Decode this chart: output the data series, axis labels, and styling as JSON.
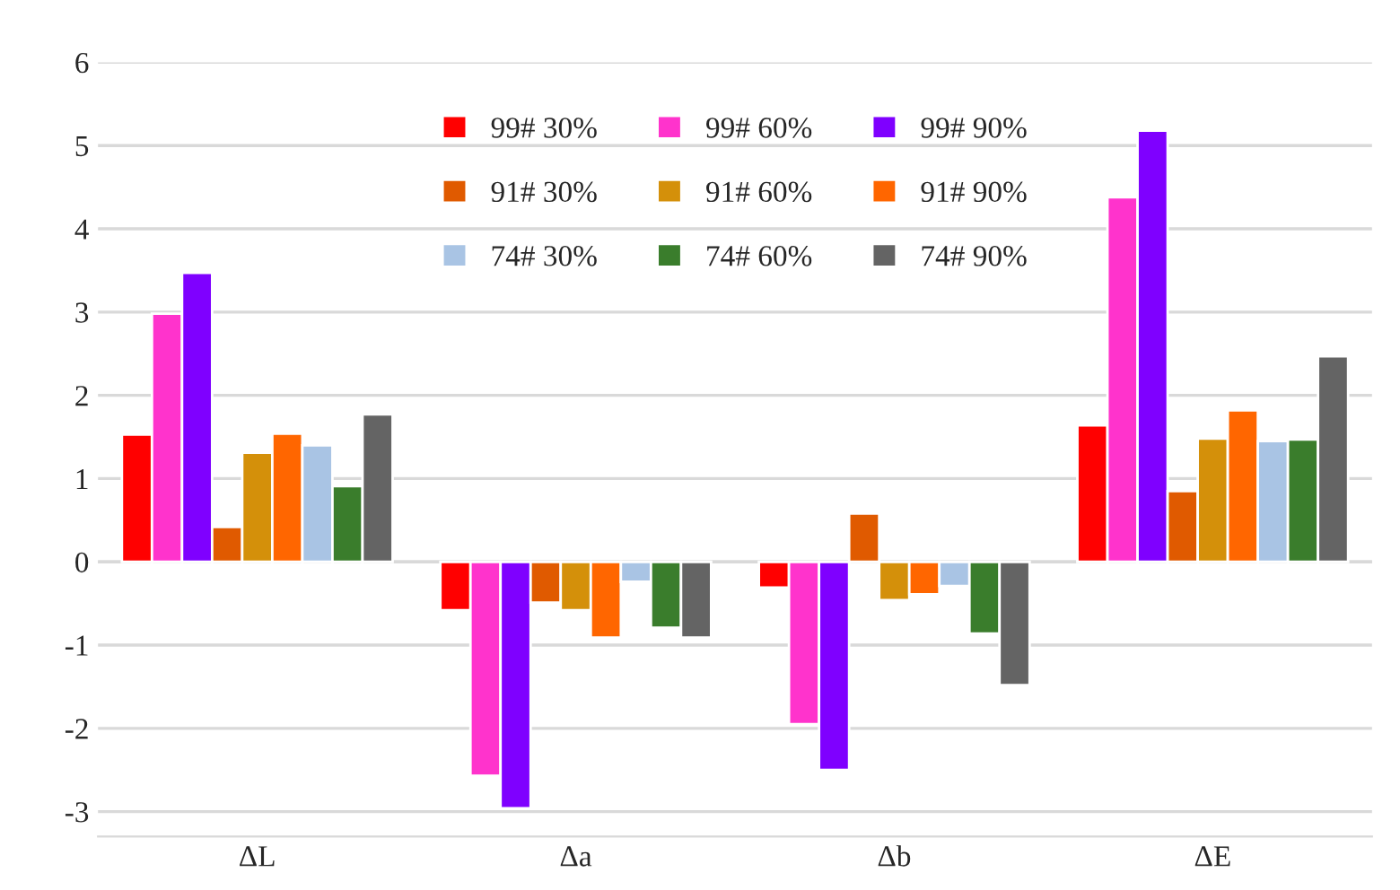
{
  "chart_data": {
    "type": "bar",
    "categories": [
      "ΔL",
      "Δa",
      "Δb",
      "ΔE"
    ],
    "series": [
      {
        "name": "99# 30%",
        "color": "#ff0000",
        "values": [
          1.53,
          -0.58,
          -0.31,
          1.64
        ]
      },
      {
        "name": "99# 60%",
        "color": "#ff33cc",
        "values": [
          2.98,
          -2.57,
          -1.95,
          4.38
        ]
      },
      {
        "name": "99# 90%",
        "color": "#7f00ff",
        "values": [
          3.47,
          -2.96,
          -2.5,
          5.18
        ]
      },
      {
        "name": "91# 30%",
        "color": "#e05a00",
        "values": [
          0.42,
          -0.49,
          0.58,
          0.85
        ]
      },
      {
        "name": "91# 60%",
        "color": "#d4900a",
        "values": [
          1.31,
          -0.58,
          -0.46,
          1.48
        ]
      },
      {
        "name": "91# 90%",
        "color": "#ff6600",
        "values": [
          1.54,
          -0.91,
          -0.39,
          1.82
        ]
      },
      {
        "name": "74# 30%",
        "color": "#a9c4e4",
        "values": [
          1.4,
          -0.24,
          -0.29,
          1.45
        ]
      },
      {
        "name": "74# 60%",
        "color": "#3a7d2c",
        "values": [
          0.91,
          -0.79,
          -0.86,
          1.47
        ]
      },
      {
        "name": "74# 90%",
        "color": "#646464",
        "values": [
          1.77,
          -0.91,
          -1.48,
          2.47
        ]
      }
    ],
    "ylim": [
      -3.3,
      6
    ],
    "yticks": [
      -3,
      -2,
      -1,
      0,
      1,
      2,
      3,
      4,
      5,
      6
    ],
    "grid": "y",
    "legend": "top"
  }
}
